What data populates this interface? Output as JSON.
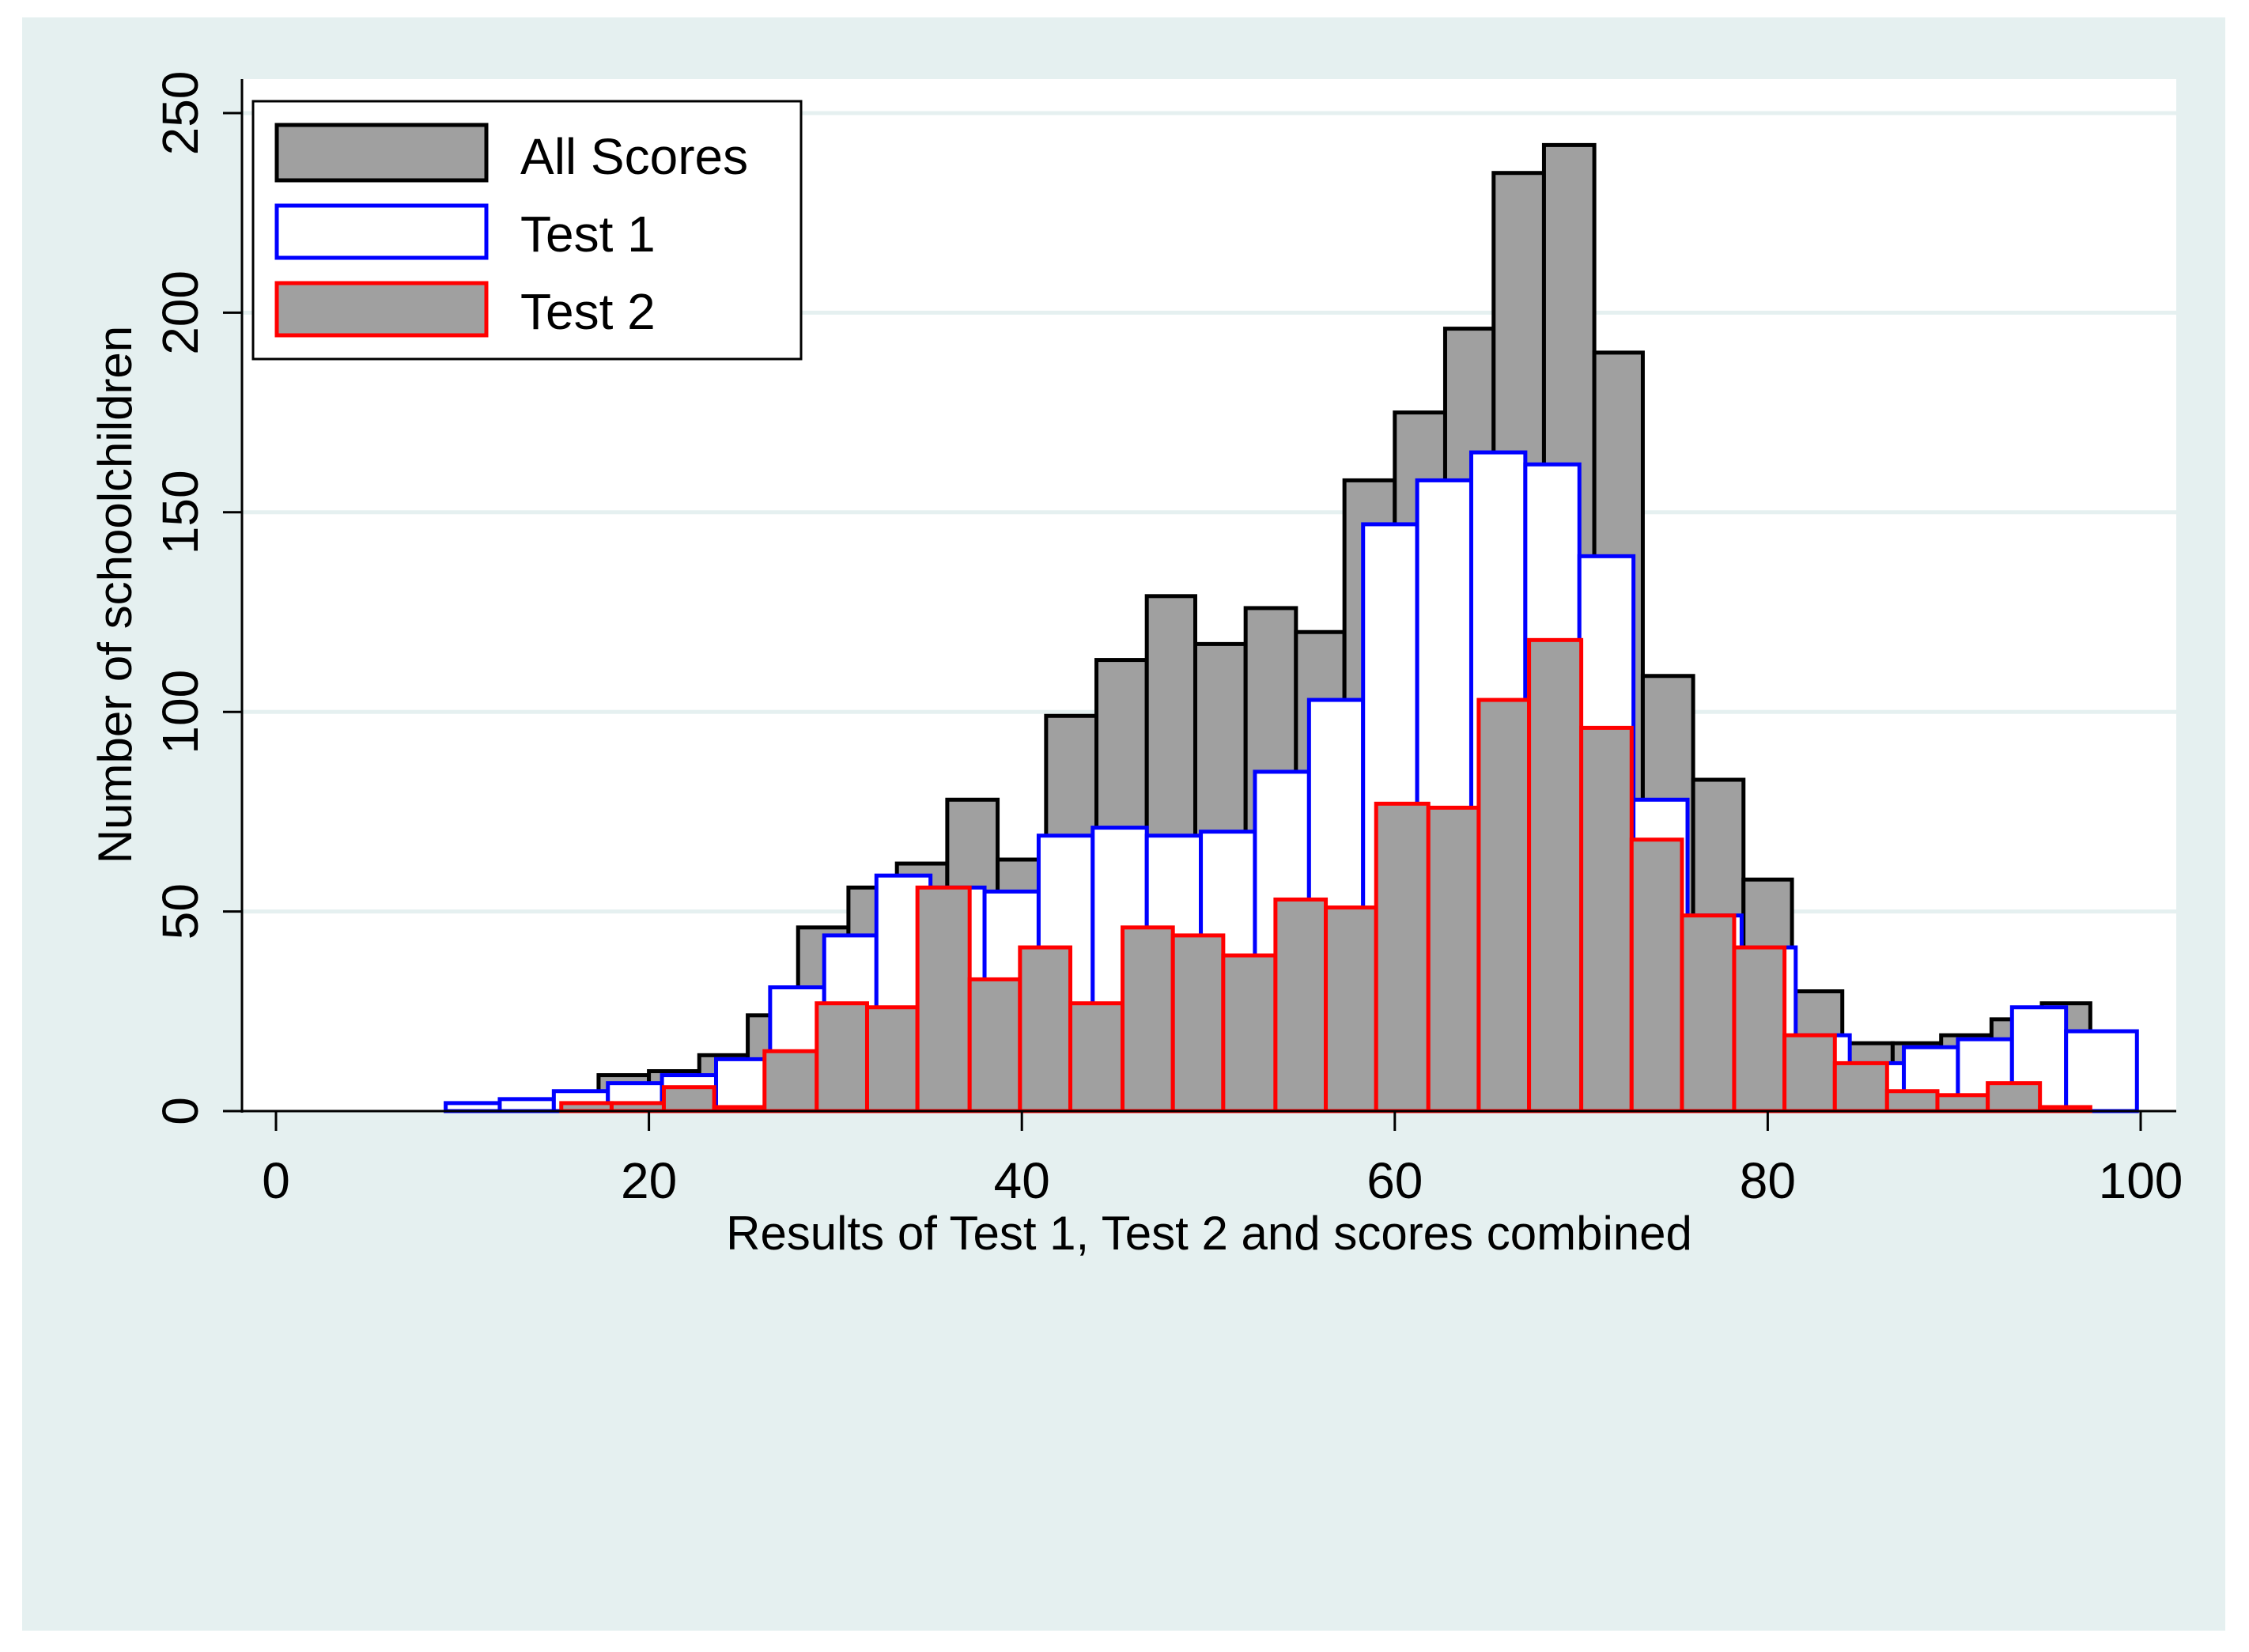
{
  "chart_data": {
    "type": "bar",
    "title": "",
    "xlabel": "Results of Test 1, Test 2 and scores combined",
    "ylabel": "Number of schoolchildren",
    "xlim": [
      0,
      100
    ],
    "ylim": [
      0,
      250
    ],
    "x_ticks": [
      0,
      20,
      40,
      60,
      80,
      100
    ],
    "y_ticks": [
      0,
      50,
      100,
      150,
      200,
      250
    ],
    "grid": "horizontal",
    "legend_position": "top-left",
    "series": [
      {
        "name": "All Scores",
        "fill": "#a0a0a0",
        "stroke": "#000000",
        "bins": [
          [
            17.3,
            20.0,
            9
          ],
          [
            20.0,
            22.7,
            10
          ],
          [
            22.7,
            25.3,
            14
          ],
          [
            25.3,
            28.0,
            24
          ],
          [
            28.0,
            30.7,
            46
          ],
          [
            30.7,
            33.3,
            56
          ],
          [
            33.3,
            36.0,
            62
          ],
          [
            36.0,
            38.7,
            78
          ],
          [
            38.7,
            41.3,
            63
          ],
          [
            41.3,
            44.0,
            99
          ],
          [
            44.0,
            46.7,
            113
          ],
          [
            46.7,
            49.3,
            129
          ],
          [
            49.3,
            52.0,
            117
          ],
          [
            52.0,
            54.7,
            126
          ],
          [
            54.7,
            57.3,
            120
          ],
          [
            57.3,
            60.0,
            158
          ],
          [
            60.0,
            62.7,
            175
          ],
          [
            62.7,
            65.3,
            196
          ],
          [
            65.3,
            68.0,
            235
          ],
          [
            68.0,
            70.7,
            242
          ],
          [
            70.7,
            73.3,
            190
          ],
          [
            73.3,
            76.0,
            109
          ],
          [
            76.0,
            78.7,
            83
          ],
          [
            78.7,
            81.3,
            58
          ],
          [
            81.3,
            84.0,
            30
          ],
          [
            84.0,
            86.7,
            17
          ],
          [
            86.7,
            89.3,
            17
          ],
          [
            89.3,
            92.0,
            19
          ],
          [
            92.0,
            94.7,
            23
          ],
          [
            94.7,
            97.3,
            27
          ]
        ]
      },
      {
        "name": "Test 1",
        "fill": "#ffffff",
        "stroke": "#0000ff",
        "bins": [
          [
            9.1,
            12.0,
            2
          ],
          [
            12.0,
            14.9,
            3
          ],
          [
            14.9,
            17.8,
            5
          ],
          [
            17.8,
            20.7,
            7
          ],
          [
            20.7,
            23.6,
            9
          ],
          [
            23.6,
            26.5,
            13
          ],
          [
            26.5,
            29.4,
            31
          ],
          [
            29.4,
            32.2,
            44
          ],
          [
            32.2,
            35.1,
            59
          ],
          [
            35.1,
            38.0,
            56
          ],
          [
            38.0,
            40.9,
            55
          ],
          [
            40.9,
            43.8,
            69
          ],
          [
            43.8,
            46.7,
            71
          ],
          [
            46.7,
            49.6,
            69
          ],
          [
            49.6,
            52.5,
            70
          ],
          [
            52.5,
            55.4,
            85
          ],
          [
            55.4,
            58.3,
            103
          ],
          [
            58.3,
            61.2,
            147
          ],
          [
            61.2,
            64.1,
            158
          ],
          [
            64.1,
            67.0,
            165
          ],
          [
            67.0,
            69.9,
            162
          ],
          [
            69.9,
            72.8,
            139
          ],
          [
            72.8,
            75.7,
            78
          ],
          [
            75.7,
            78.6,
            49
          ],
          [
            78.6,
            81.5,
            41
          ],
          [
            81.5,
            84.4,
            19
          ],
          [
            84.4,
            87.3,
            12
          ],
          [
            87.3,
            90.2,
            16
          ],
          [
            90.2,
            93.1,
            18
          ],
          [
            93.1,
            96.0,
            26
          ],
          [
            96.0,
            99.8,
            20
          ]
        ]
      },
      {
        "name": "Test 2",
        "fill": "#a0a0a0",
        "stroke": "#ff0000",
        "bins": [
          [
            15.3,
            18.0,
            2
          ],
          [
            18.0,
            20.8,
            2
          ],
          [
            20.8,
            23.5,
            6
          ],
          [
            23.5,
            26.2,
            1
          ],
          [
            26.2,
            29.0,
            15
          ],
          [
            29.0,
            31.7,
            27
          ],
          [
            31.7,
            34.4,
            26
          ],
          [
            34.4,
            37.2,
            56
          ],
          [
            37.2,
            39.9,
            33
          ],
          [
            39.9,
            42.6,
            41
          ],
          [
            42.6,
            45.4,
            27
          ],
          [
            45.4,
            48.1,
            46
          ],
          [
            48.1,
            50.8,
            44
          ],
          [
            50.8,
            53.6,
            39
          ],
          [
            53.6,
            56.3,
            53
          ],
          [
            56.3,
            59.0,
            51
          ],
          [
            59.0,
            61.8,
            77
          ],
          [
            61.8,
            64.5,
            76
          ],
          [
            64.5,
            67.2,
            103
          ],
          [
            67.2,
            70.0,
            118
          ],
          [
            70.0,
            72.7,
            96
          ],
          [
            72.7,
            75.4,
            68
          ],
          [
            75.4,
            78.2,
            49
          ],
          [
            78.2,
            80.9,
            41
          ],
          [
            80.9,
            83.6,
            19
          ],
          [
            83.6,
            86.4,
            12
          ],
          [
            86.4,
            89.1,
            5
          ],
          [
            89.1,
            91.8,
            4
          ],
          [
            91.8,
            94.6,
            7
          ],
          [
            94.6,
            97.3,
            1
          ]
        ]
      }
    ]
  },
  "colors": {
    "frame_background": "#e5f0f0",
    "plot_background": "#ffffff",
    "gridline": "#e5f0f0"
  }
}
